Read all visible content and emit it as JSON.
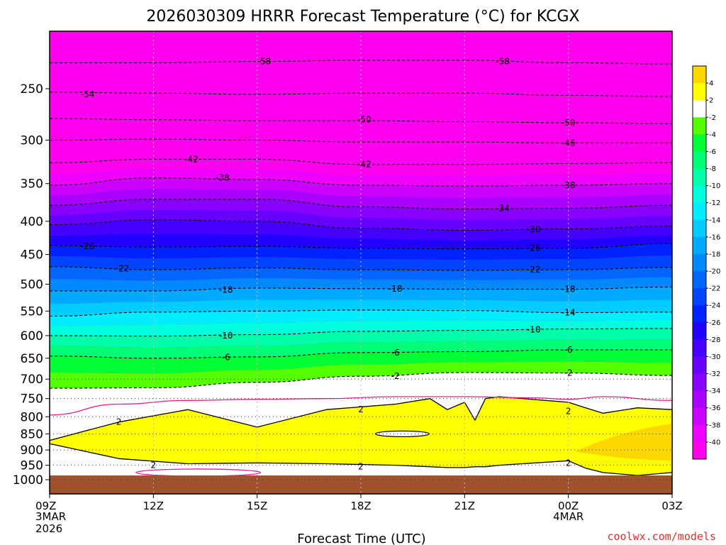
{
  "chart_data": {
    "type": "contour",
    "title": "2026030309 HRRR Forecast Temperature (°C) for KCGX",
    "xlabel": "Forecast Time (UTC)",
    "ylabel": "",
    "credit": "coolwx.com/models",
    "x_ticks": [
      {
        "label": "09Z",
        "sub1": "3MAR",
        "sub2": "2026",
        "hours": 0
      },
      {
        "label": "12Z",
        "sub1": "",
        "sub2": "",
        "hours": 3
      },
      {
        "label": "15Z",
        "sub1": "",
        "sub2": "",
        "hours": 6
      },
      {
        "label": "18Z",
        "sub1": "",
        "sub2": "",
        "hours": 9
      },
      {
        "label": "21Z",
        "sub1": "",
        "sub2": "",
        "hours": 12
      },
      {
        "label": "00Z",
        "sub1": "4MAR",
        "sub2": "",
        "hours": 15
      },
      {
        "label": "03Z",
        "sub1": "",
        "sub2": "",
        "hours": 18
      }
    ],
    "xlim": [
      0,
      18
    ],
    "pressure_ticks": [
      250,
      300,
      350,
      400,
      450,
      500,
      550,
      600,
      650,
      700,
      750,
      800,
      850,
      900,
      950,
      1000
    ],
    "pressure_range_hPa": [
      200,
      1035
    ],
    "colorbar": {
      "ticks": [
        4,
        2,
        -2,
        -4,
        -6,
        -8,
        -10,
        -12,
        -14,
        -16,
        -18,
        -20,
        -22,
        -24,
        -26,
        -28,
        -30,
        -32,
        -34,
        -36,
        -38,
        -40
      ],
      "bands": [
        {
          "from": 4,
          "to": 99,
          "color": "#ffd700"
        },
        {
          "from": 2,
          "to": 4,
          "color": "#ffff00"
        },
        {
          "from": -2,
          "to": 2,
          "color": "#ffffff"
        },
        {
          "from": -4,
          "to": -2,
          "color": "#55ff00"
        },
        {
          "from": -6,
          "to": -4,
          "color": "#00ff33"
        },
        {
          "from": -8,
          "to": -6,
          "color": "#00ff77"
        },
        {
          "from": -10,
          "to": -8,
          "color": "#00ffaa"
        },
        {
          "from": -12,
          "to": -10,
          "color": "#00ffdd"
        },
        {
          "from": -14,
          "to": -12,
          "color": "#00eeff"
        },
        {
          "from": -16,
          "to": -14,
          "color": "#00ccff"
        },
        {
          "from": -18,
          "to": -16,
          "color": "#00aaff"
        },
        {
          "from": -20,
          "to": -18,
          "color": "#0088ff"
        },
        {
          "from": -22,
          "to": -20,
          "color": "#0066ff"
        },
        {
          "from": -24,
          "to": -22,
          "color": "#0044ff"
        },
        {
          "from": -26,
          "to": -24,
          "color": "#0022ff"
        },
        {
          "from": -28,
          "to": -26,
          "color": "#2200ff"
        },
        {
          "from": -30,
          "to": -28,
          "color": "#4400ff"
        },
        {
          "from": -32,
          "to": -30,
          "color": "#6600ff"
        },
        {
          "from": -34,
          "to": -32,
          "color": "#8800ff"
        },
        {
          "from": -36,
          "to": -34,
          "color": "#aa00ff"
        },
        {
          "from": -38,
          "to": -36,
          "color": "#cc00ff"
        },
        {
          "from": -40,
          "to": -38,
          "color": "#ee00ff"
        },
        {
          "from": -99,
          "to": -40,
          "color": "#ff00ee"
        }
      ]
    },
    "isotherm_levels": [
      {
        "temp": -58,
        "p": [
          228,
          228,
          227,
          226,
          226,
          228,
          229
        ]
      },
      {
        "temp": -54,
        "p": [
          253,
          254,
          255,
          254,
          254,
          256,
          257
        ]
      },
      {
        "temp": -50,
        "p": [
          278,
          279,
          280,
          280,
          281,
          282,
          283
        ]
      },
      {
        "temp": -46,
        "p": [
          300,
          299,
          300,
          302,
          302,
          303,
          303
        ]
      },
      {
        "temp": -42,
        "p": [
          325,
          321,
          321,
          327,
          327,
          326,
          325
        ]
      },
      {
        "temp": -38,
        "p": [
          352,
          343,
          345,
          352,
          353,
          352,
          350
        ]
      },
      {
        "temp": -34,
        "p": [
          378,
          370,
          370,
          380,
          383,
          382,
          378
        ]
      },
      {
        "temp": -30,
        "p": [
          405,
          398,
          400,
          410,
          413,
          411,
          407
        ]
      },
      {
        "temp": -26,
        "p": [
          436,
          438,
          437,
          440,
          441,
          440,
          433
        ]
      },
      {
        "temp": -22,
        "p": [
          470,
          475,
          472,
          475,
          476,
          475,
          471
        ]
      },
      {
        "temp": -18,
        "p": [
          512,
          512,
          507,
          508,
          509,
          509,
          505
        ]
      },
      {
        "temp": -14,
        "p": [
          560,
          552,
          550,
          548,
          549,
          553,
          552
        ]
      },
      {
        "temp": -10,
        "p": [
          600,
          601,
          598,
          591,
          589,
          586,
          585
        ]
      },
      {
        "temp": -6,
        "p": [
          645,
          650,
          647,
          637,
          635,
          631,
          631
        ]
      },
      {
        "temp": -2,
        "p": [
          723,
          722,
          708,
          693,
          684,
          685,
          691
        ]
      }
    ],
    "inline_labels": [
      {
        "text": "-58",
        "hours": 6.2,
        "p": 227
      },
      {
        "text": "-58",
        "hours": 13.1,
        "p": 227
      },
      {
        "text": "-54",
        "hours": 1.1,
        "p": 255
      },
      {
        "text": "-50",
        "hours": 9.1,
        "p": 279
      },
      {
        "text": "-50",
        "hours": 15.0,
        "p": 282
      },
      {
        "text": "-46",
        "hours": 15.0,
        "p": 303
      },
      {
        "text": "-42",
        "hours": 4.1,
        "p": 321
      },
      {
        "text": "-42",
        "hours": 9.1,
        "p": 327
      },
      {
        "text": "-38",
        "hours": 5.0,
        "p": 343
      },
      {
        "text": "-38",
        "hours": 15.0,
        "p": 352
      },
      {
        "text": "-34",
        "hours": 13.1,
        "p": 382
      },
      {
        "text": "-30",
        "hours": 14.0,
        "p": 412
      },
      {
        "text": "-26",
        "hours": 1.1,
        "p": 437
      },
      {
        "text": "-26",
        "hours": 14.0,
        "p": 440
      },
      {
        "text": "-22",
        "hours": 2.1,
        "p": 473
      },
      {
        "text": "-22",
        "hours": 14.0,
        "p": 475
      },
      {
        "text": "-18",
        "hours": 5.1,
        "p": 510
      },
      {
        "text": "-18",
        "hours": 10.0,
        "p": 508
      },
      {
        "text": "-18",
        "hours": 15.0,
        "p": 509
      },
      {
        "text": "-14",
        "hours": 15.0,
        "p": 553
      },
      {
        "text": "-10",
        "hours": 5.1,
        "p": 600
      },
      {
        "text": "-10",
        "hours": 14.0,
        "p": 587
      },
      {
        "text": "-6",
        "hours": 5.1,
        "p": 648
      },
      {
        "text": "-6",
        "hours": 10.0,
        "p": 637
      },
      {
        "text": "-6",
        "hours": 15.0,
        "p": 631
      },
      {
        "text": "-2",
        "hours": 10.0,
        "p": 693
      },
      {
        "text": "-2",
        "hours": 15.0,
        "p": 685
      },
      {
        "text": "2",
        "hours": 2.0,
        "p": 815
      },
      {
        "text": "2",
        "hours": 9.0,
        "p": 780
      },
      {
        "text": "2",
        "hours": 15.0,
        "p": 784
      },
      {
        "text": "2",
        "hours": 3.0,
        "p": 950
      },
      {
        "text": "2",
        "hours": 9.0,
        "p": 955
      },
      {
        "text": "2",
        "hours": 15.0,
        "p": 942
      }
    ],
    "warm_layer_2C": {
      "top_p": [
        870,
        815,
        780,
        830,
        780,
        765,
        750,
        780,
        760,
        810,
        750,
        745,
        760,
        775,
        790,
        775,
        780
      ],
      "bottom_p": [
        880,
        928,
        945,
        942,
        945,
        950,
        955,
        958,
        958,
        955,
        955,
        950,
        935,
        960,
        975,
        985,
        975
      ],
      "hours": [
        0,
        2,
        4,
        6,
        8,
        10,
        11,
        11.5,
        12,
        12.3,
        12.6,
        13,
        15,
        15.5,
        16,
        17,
        18
      ]
    },
    "zero_isotherm": {
      "hours": [
        0,
        2,
        4,
        6,
        8,
        10,
        12,
        14,
        15,
        16,
        18
      ],
      "p": [
        795,
        765,
        755,
        752,
        750,
        745,
        745,
        748,
        752,
        745,
        755
      ]
    },
    "ground": {
      "p_top": 985
    }
  }
}
